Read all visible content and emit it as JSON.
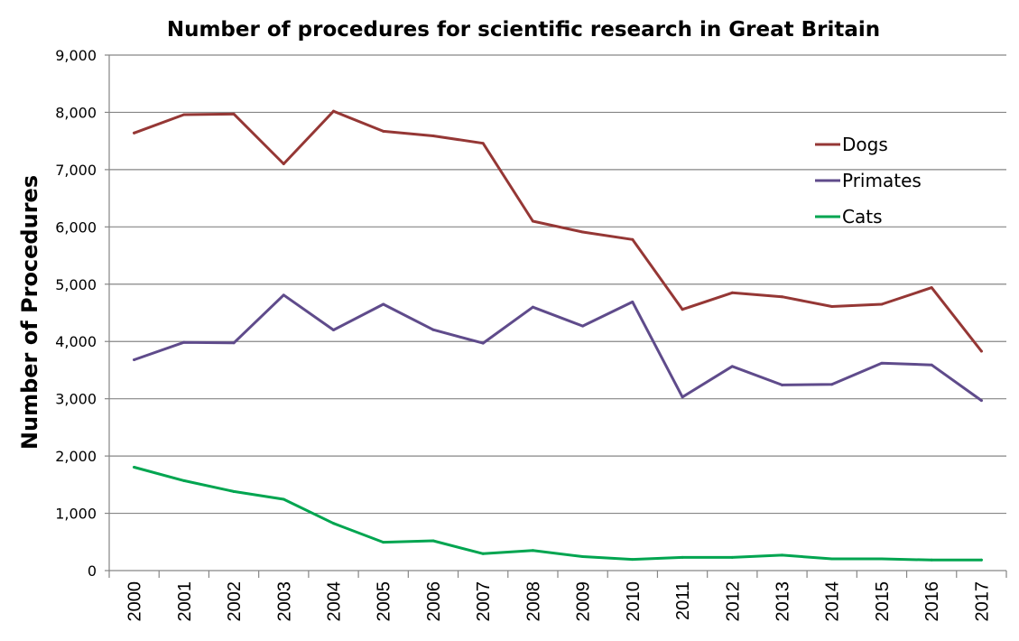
{
  "chart_data": {
    "type": "line",
    "title": "Number of procedures for scientific research in Great Britain",
    "xlabel": "",
    "ylabel": "Number of Procedures",
    "ylim": [
      0,
      9000
    ],
    "yticks": [
      0,
      1000,
      2000,
      3000,
      4000,
      5000,
      6000,
      7000,
      8000,
      9000
    ],
    "ytick_labels": [
      "0",
      "1,000",
      "2,000",
      "3,000",
      "4,000",
      "5,000",
      "6,000",
      "7,000",
      "8,000",
      "9,000"
    ],
    "grid": true,
    "legend_position": "upper-right",
    "categories": [
      "2000",
      "2001",
      "2002",
      "2003",
      "2004",
      "2005",
      "2006",
      "2007",
      "2008",
      "2009",
      "2010",
      "2011",
      "2012",
      "2013",
      "2014",
      "2015",
      "2016",
      "2017"
    ],
    "series": [
      {
        "name": "Dogs",
        "color": "#953735",
        "values": [
          7640,
          7960,
          7970,
          7100,
          8020,
          7670,
          7590,
          7460,
          6100,
          5910,
          5780,
          4560,
          4850,
          4780,
          4610,
          4650,
          4940,
          3830
        ]
      },
      {
        "name": "Primates",
        "color": "#5f4b8b",
        "values": [
          3680,
          3985,
          3975,
          4810,
          4200,
          4650,
          4205,
          3970,
          4600,
          4270,
          4690,
          3030,
          3565,
          3240,
          3250,
          3620,
          3590,
          2970
        ]
      },
      {
        "name": "Cats",
        "color": "#00a550",
        "values": [
          1805,
          1570,
          1380,
          1245,
          825,
          495,
          520,
          295,
          350,
          245,
          195,
          230,
          230,
          270,
          205,
          205,
          185,
          185
        ]
      }
    ]
  }
}
